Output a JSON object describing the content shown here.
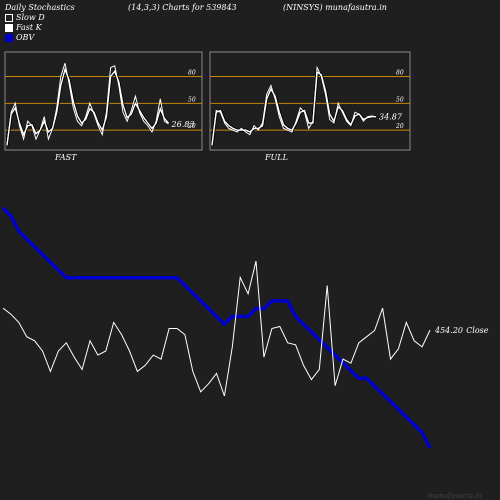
{
  "header": {
    "left": "Daily Stochastics",
    "params": "(14,3,3) Charts for 539843",
    "right": "(NINSYS) munafasutra.in"
  },
  "legend": [
    {
      "label": "Slow  D",
      "color": "#ffffff",
      "fill": "#1f1f1f"
    },
    {
      "label": "Fast K",
      "color": "#ffffff",
      "fill": "#ffffff"
    },
    {
      "label": "OBV",
      "color": "#0000cc",
      "fill": "#0000cc"
    }
  ],
  "colors": {
    "bg": "#1f1f1f",
    "level": "#c8860a",
    "price": "#ffffff",
    "obv": "#0000cc",
    "panel_border": "#888888"
  },
  "panels": [
    {
      "name": "FAST",
      "value_label": "26.83",
      "levels": [
        80,
        50,
        20
      ],
      "level_labels": [
        "80",
        "50",
        "20"
      ],
      "fast_k": [
        4,
        40,
        50,
        25,
        10,
        30,
        25,
        10,
        20,
        35,
        10,
        22,
        45,
        80,
        95,
        72,
        45,
        30,
        25,
        35,
        50,
        38,
        25,
        15,
        40,
        90,
        92,
        70,
        40,
        30,
        42,
        58,
        40,
        30,
        25,
        18,
        30,
        55,
        30,
        27
      ],
      "slow_d": [
        3,
        38,
        45,
        28,
        15,
        25,
        26,
        16,
        20,
        30,
        18,
        22,
        40,
        70,
        88,
        76,
        52,
        36,
        28,
        32,
        44,
        40,
        28,
        20,
        35,
        80,
        86,
        74,
        48,
        34,
        38,
        50,
        42,
        34,
        28,
        22,
        28,
        44,
        33,
        28
      ]
    },
    {
      "name": "FULL",
      "value_label": "34.87",
      "levels": [
        80,
        50,
        20
      ],
      "level_labels": [
        "80",
        "50",
        "20"
      ],
      "fast_k": [
        4,
        42,
        40,
        28,
        22,
        20,
        18,
        22,
        18,
        15,
        25,
        20,
        28,
        60,
        70,
        55,
        35,
        22,
        20,
        18,
        30,
        45,
        40,
        22,
        30,
        90,
        80,
        60,
        32,
        28,
        50,
        40,
        30,
        25,
        40,
        38,
        30,
        35,
        36,
        35
      ],
      "slow_d": [
        3,
        40,
        42,
        30,
        25,
        22,
        20,
        20,
        20,
        18,
        22,
        22,
        25,
        55,
        66,
        58,
        40,
        26,
        22,
        20,
        28,
        40,
        42,
        28,
        28,
        85,
        82,
        64,
        38,
        30,
        46,
        42,
        32,
        26,
        36,
        38,
        32,
        34,
        35,
        35
      ]
    }
  ],
  "main": {
    "close_label": "454.20",
    "close_suffix": "Close",
    "price": [
      465,
      462,
      458,
      451,
      449,
      444,
      434,
      444,
      448,
      441,
      435,
      449,
      442,
      444,
      458,
      452,
      444,
      434,
      437,
      442,
      440,
      455,
      455,
      452,
      434,
      424,
      428,
      433,
      422,
      446,
      480,
      472,
      488,
      441,
      455,
      456,
      448,
      447,
      437,
      430,
      435,
      476,
      427,
      440,
      438,
      448,
      451,
      454,
      465,
      440,
      445,
      458,
      449,
      446,
      454.2
    ],
    "obv": [
      9,
      8,
      6,
      5,
      4,
      3,
      2,
      1,
      0,
      0,
      0,
      0,
      0,
      0,
      0,
      0,
      0,
      0,
      0,
      0,
      0,
      0,
      0,
      -1,
      -2,
      -3,
      -4,
      -5,
      -6,
      -5,
      -5,
      -5,
      -4,
      -4,
      -3,
      -3,
      -3,
      -5,
      -6,
      -7,
      -8,
      -9,
      -10,
      -11,
      -12,
      -13,
      -13,
      -14,
      -15,
      -16,
      -17,
      -18,
      -19,
      -20,
      -22
    ]
  },
  "footer": "munafasutra.in"
}
